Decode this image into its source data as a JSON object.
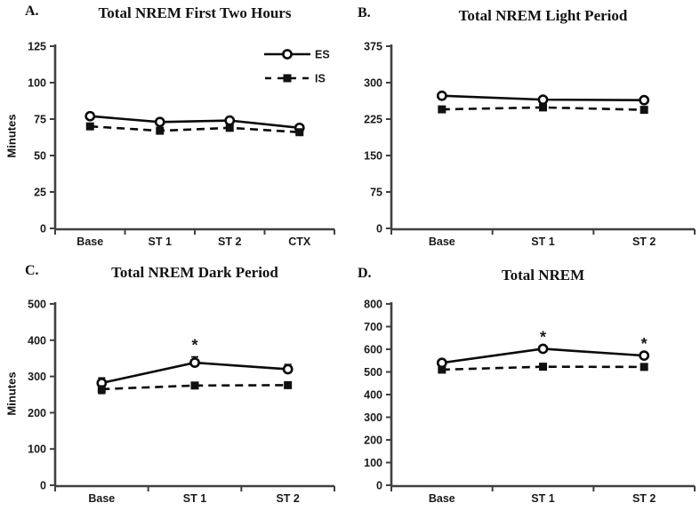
{
  "figure": {
    "background": "#ffffff",
    "axis_color": "#404040",
    "data_color": "#0a0a0a",
    "sig_symbol": "*",
    "units": "Minutes"
  },
  "legend": {
    "position": "top-right inside panel A",
    "items": [
      {
        "label": "ES",
        "marker": "open-circle",
        "line": "solid"
      },
      {
        "label": "IS",
        "marker": "filled-square",
        "line": "dashed"
      }
    ]
  },
  "chart_data": [
    {
      "type": "line",
      "panel_label": "A.",
      "title": "Total NREM First Two Hours",
      "ylabel": "Minutes",
      "ylim": [
        0,
        125
      ],
      "yticks": [
        0,
        25,
        50,
        75,
        100,
        125
      ],
      "grid": false,
      "categories": [
        "Base",
        "ST 1",
        "ST 2",
        "CTX"
      ],
      "series": [
        {
          "name": "ES",
          "marker": "open-circle",
          "line": "solid",
          "values": [
            77,
            73,
            74,
            69
          ]
        },
        {
          "name": "IS",
          "marker": "filled-square",
          "line": "dashed",
          "values": [
            70,
            67,
            69,
            66
          ]
        }
      ],
      "show_legend": true
    },
    {
      "type": "line",
      "panel_label": "B.",
      "title": "Total NREM Light Period",
      "ylabel": "",
      "ylim": [
        0,
        375
      ],
      "yticks": [
        0,
        75,
        150,
        225,
        300,
        375
      ],
      "grid": false,
      "categories": [
        "Base",
        "ST 1",
        "ST 2"
      ],
      "series": [
        {
          "name": "ES",
          "marker": "open-circle",
          "line": "solid",
          "values": [
            273,
            265,
            264
          ]
        },
        {
          "name": "IS",
          "marker": "filled-square",
          "line": "dashed",
          "values": [
            245,
            249,
            244
          ]
        }
      ],
      "show_legend": false
    },
    {
      "type": "line",
      "panel_label": "C.",
      "title": "Total NREM Dark Period",
      "ylabel": "Minutes",
      "ylim": [
        0,
        500
      ],
      "yticks": [
        0,
        100,
        200,
        300,
        400,
        500
      ],
      "grid": false,
      "categories": [
        "Base",
        "ST 1",
        "ST 2"
      ],
      "series": [
        {
          "name": "ES",
          "marker": "open-circle",
          "line": "solid",
          "values": [
            282,
            338,
            320
          ],
          "errors_up": [
            14,
            16,
            13
          ],
          "sig_indices": [
            1
          ]
        },
        {
          "name": "IS",
          "marker": "filled-square",
          "line": "dashed",
          "values": [
            265,
            275,
            276
          ],
          "errors_down": [
            12,
            0,
            0
          ]
        }
      ],
      "show_legend": false
    },
    {
      "type": "line",
      "panel_label": "D.",
      "title": "Total NREM",
      "ylabel": "",
      "ylim": [
        0,
        800
      ],
      "yticks": [
        0,
        100,
        200,
        300,
        400,
        500,
        600,
        700,
        800
      ],
      "grid": false,
      "categories": [
        "Base",
        "ST 1",
        "ST 2"
      ],
      "series": [
        {
          "name": "ES",
          "marker": "open-circle",
          "line": "solid",
          "values": [
            540,
            602,
            572
          ],
          "sig_indices": [
            1,
            2
          ]
        },
        {
          "name": "IS",
          "marker": "filled-square",
          "line": "dashed",
          "values": [
            510,
            523,
            522
          ]
        }
      ],
      "show_legend": false
    }
  ]
}
